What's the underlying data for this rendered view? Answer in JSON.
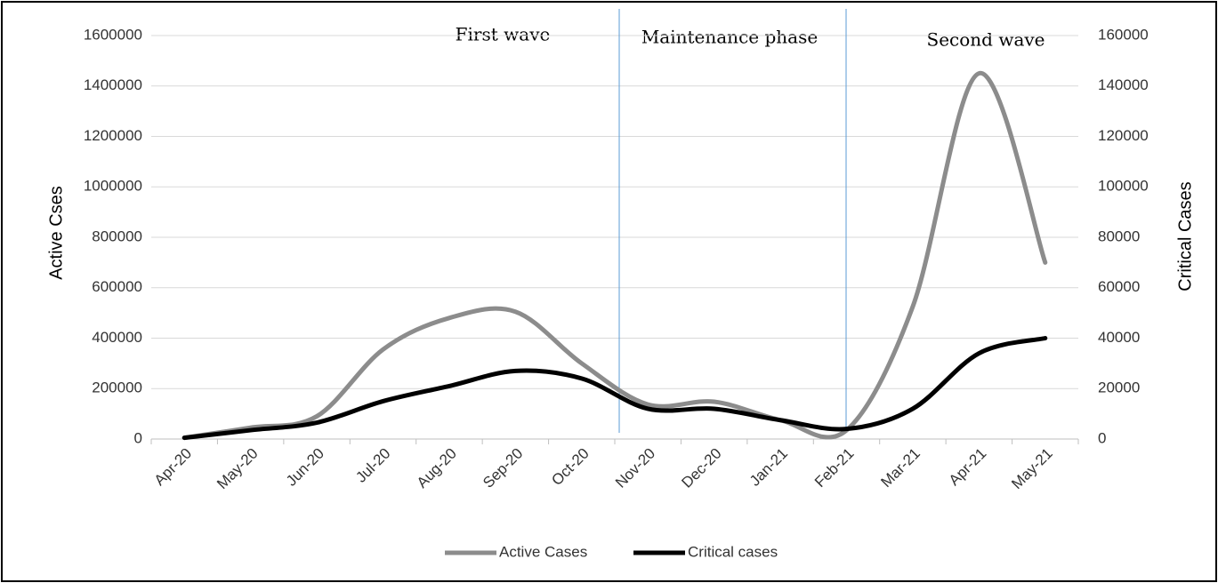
{
  "chart_data": {
    "type": "line",
    "annotations": [
      "First wave",
      "Maintenance phase",
      "Second wave"
    ],
    "ylabel": "Active Cses",
    "y2label": "Critical Cases",
    "categories": [
      "Apr-20",
      "May-20",
      "Jun-20",
      "Jul-20",
      "Aug-20",
      "Sep-20",
      "Oct-20",
      "Nov-20",
      "Dec-20",
      "Jan-21",
      "Feb-21",
      "Mar-21",
      "Apr-21",
      "May-21"
    ],
    "series": [
      {
        "name": "Active Cases",
        "color": "#8c8c8c",
        "values": [
          5000,
          45000,
          90000,
          355000,
          480000,
          505000,
          300000,
          137000,
          148000,
          75000,
          35000,
          525000,
          1450000,
          700000
        ]
      },
      {
        "name": "Critical cases",
        "color": "#000000",
        "axis": "y2",
        "values": [
          500,
          3500,
          6500,
          15000,
          21000,
          27000,
          24000,
          12000,
          12000,
          7500,
          4000,
          12000,
          34000,
          40000
        ]
      }
    ],
    "ylim": [
      0,
      1600000
    ],
    "yticks": [
      0,
      200000,
      400000,
      600000,
      800000,
      1000000,
      1200000,
      1400000,
      1600000
    ],
    "y2lim": [
      0,
      160000
    ],
    "y2ticks": [
      0,
      20000,
      40000,
      60000,
      80000,
      100000,
      120000,
      140000,
      160000
    ],
    "grid": true,
    "legend": "bottom"
  }
}
